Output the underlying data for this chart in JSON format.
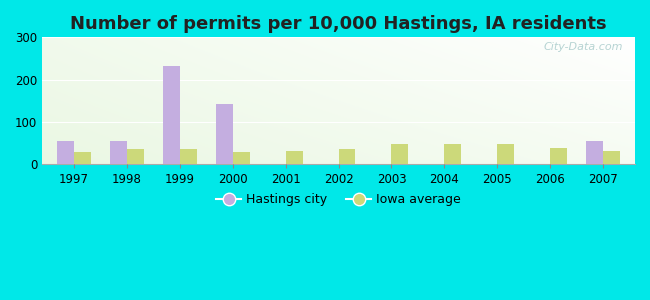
{
  "title": "Number of permits per 10,000 Hastings, IA residents",
  "years": [
    1997,
    1998,
    1999,
    2000,
    2001,
    2002,
    2003,
    2004,
    2005,
    2006,
    2007
  ],
  "hastings": [
    55,
    55,
    232,
    143,
    0,
    0,
    0,
    0,
    0,
    0,
    55
  ],
  "iowa_avg": [
    28,
    35,
    35,
    30,
    32,
    37,
    47,
    48,
    48,
    38,
    32
  ],
  "hastings_color": "#c4aee0",
  "iowa_color": "#ccd97a",
  "bar_width": 0.32,
  "ylim": [
    0,
    300
  ],
  "yticks": [
    0,
    100,
    200,
    300
  ],
  "outer_color": "#00e8e8",
  "title_fontsize": 13,
  "watermark": "City-Data.com",
  "legend_hastings": "Hastings city",
  "legend_iowa": "Iowa average"
}
